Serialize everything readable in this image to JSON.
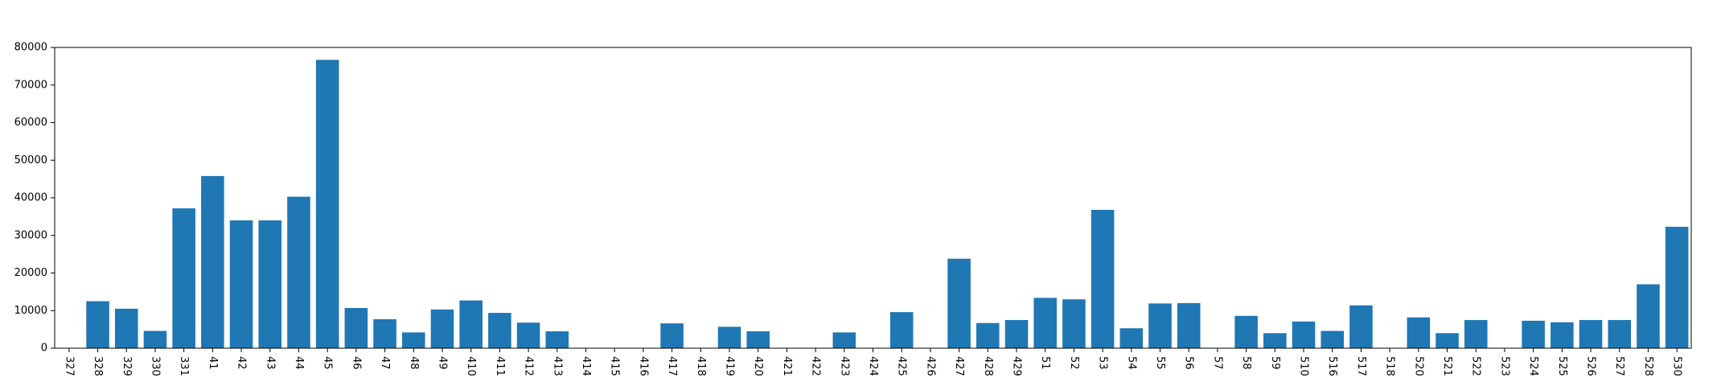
{
  "chart_data": {
    "type": "bar",
    "title": "",
    "xlabel": "",
    "ylabel": "",
    "categories": [
      "327",
      "328",
      "329",
      "330",
      "331",
      "41",
      "42",
      "43",
      "44",
      "45",
      "46",
      "47",
      "48",
      "49",
      "410",
      "411",
      "412",
      "413",
      "414",
      "415",
      "416",
      "417",
      "418",
      "419",
      "420",
      "421",
      "422",
      "423",
      "424",
      "425",
      "426",
      "427",
      "428",
      "429",
      "51",
      "52",
      "53",
      "54",
      "55",
      "56",
      "57",
      "58",
      "59",
      "510",
      "516",
      "517",
      "518",
      "520",
      "521",
      "522",
      "523",
      "524",
      "525",
      "526",
      "527",
      "528",
      "530"
    ],
    "values": [
      0,
      12500,
      10500,
      4600,
      37200,
      45800,
      34000,
      34000,
      40300,
      76700,
      10700,
      7700,
      4200,
      10300,
      12700,
      9400,
      6800,
      4500,
      0,
      0,
      0,
      6600,
      0,
      5700,
      4500,
      0,
      0,
      4200,
      0,
      9600,
      0,
      23800,
      6700,
      7500,
      13400,
      13000,
      36800,
      5300,
      11900,
      12000,
      0,
      8600,
      4000,
      7100,
      4600,
      11400,
      0,
      8200,
      4000,
      7500,
      0,
      7300,
      6900,
      7500,
      7500,
      17000,
      32300
    ],
    "ylim": [
      0,
      80000
    ],
    "yticks": [
      0,
      10000,
      20000,
      30000,
      40000,
      50000,
      60000,
      70000,
      80000
    ],
    "bar_color": "#1f77b4",
    "grid": false,
    "legend": "none"
  }
}
